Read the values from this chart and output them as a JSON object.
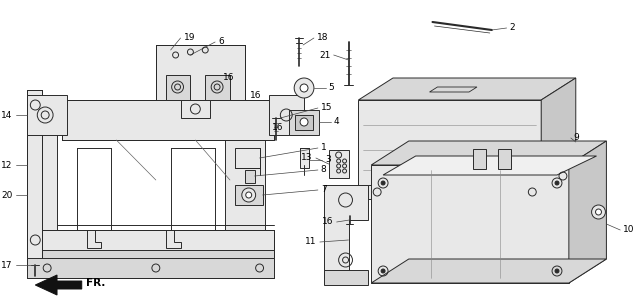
{
  "bg_color": "#ffffff",
  "line_color": "#2a2a2a",
  "light_fill": "#e8e8e8",
  "mid_fill": "#d8d8d8",
  "dark_fill": "#c8c8c8",
  "font_size": 6.5,
  "line_width": 0.7
}
